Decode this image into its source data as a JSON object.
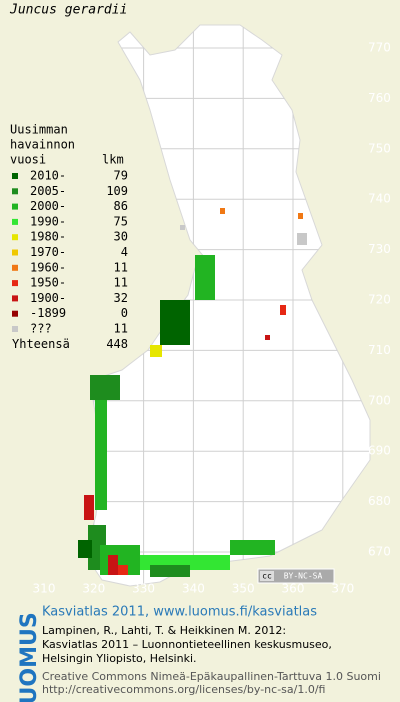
{
  "title": "Juncus gerardii",
  "legend": {
    "header": [
      "Uusimman",
      "havainnon",
      "vuosi"
    ],
    "count_header": "lkm",
    "entries": [
      {
        "label": "2010-",
        "count": 79,
        "color": "#006400"
      },
      {
        "label": "2005-",
        "count": 109,
        "color": "#1e8c1e"
      },
      {
        "label": "2000-",
        "count": 86,
        "color": "#22b422"
      },
      {
        "label": "1990-",
        "count": 75,
        "color": "#33e633"
      },
      {
        "label": "1980-",
        "count": 30,
        "color": "#e6e600"
      },
      {
        "label": "1970-",
        "count": 4,
        "color": "#f0c800"
      },
      {
        "label": "1960-",
        "count": 11,
        "color": "#f07814"
      },
      {
        "label": "1950-",
        "count": 11,
        "color": "#e62814"
      },
      {
        "label": "1900-",
        "count": 32,
        "color": "#c81414"
      },
      {
        "label": "-1899",
        "count": 0,
        "color": "#960000"
      },
      {
        "label": "???",
        "count": 11,
        "color": "#c8c8c8"
      }
    ],
    "total": {
      "label": "Yhteensä",
      "count": 448
    }
  },
  "grid": {
    "northings": [
      770,
      760,
      750,
      740,
      730,
      720,
      710,
      700,
      690,
      680,
      670
    ],
    "eastings": [
      310,
      320,
      330,
      340,
      350,
      360,
      370
    ]
  },
  "badge": "BY-NC-SA",
  "footer": {
    "logo": "LUOMUS",
    "link": "Kasviatlas 2011, www.luomus.fi/kasviatlas",
    "citation": [
      "Lampinen, R., Lahti, T. & Heikkinen M. 2012:",
      "Kasviatlas 2011 – Luonnontieteellinen keskusmuseo,",
      "Helsingin Yliopisto, Helsinki."
    ],
    "license": [
      "Creative Commons Nimeä-Epäkaupallinen-Tarttuva 1.0 Suomi",
      "http://creativecommons.org/licenses/by-nc-sa/1.0/fi"
    ]
  }
}
